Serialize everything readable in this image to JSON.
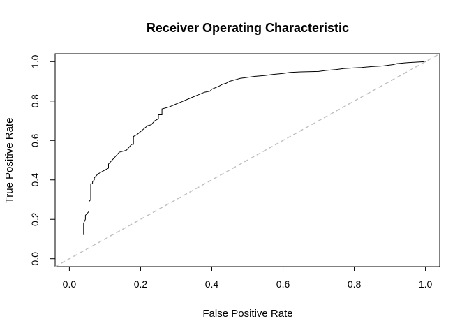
{
  "chart_data": {
    "type": "line",
    "title": "Receiver Operating Characteristic",
    "xlabel": "False Positive Rate",
    "ylabel": "True Positive Rate",
    "xlim": [
      -0.04,
      1.04
    ],
    "ylim": [
      -0.04,
      1.04
    ],
    "x_ticks": [
      0.0,
      0.2,
      0.4,
      0.6,
      0.8,
      1.0
    ],
    "x_tick_labels": [
      "0.0",
      "0.2",
      "0.4",
      "0.6",
      "0.8",
      "1.0"
    ],
    "y_ticks": [
      0.0,
      0.2,
      0.4,
      0.6,
      0.8,
      1.0
    ],
    "y_tick_labels": [
      "0.0",
      "0.2",
      "0.4",
      "0.6",
      "0.8",
      "1.0"
    ],
    "grid": false,
    "series": [
      {
        "style": "solid",
        "color": "#000000",
        "x": [
          0.04,
          0.04,
          0.045,
          0.045,
          0.05,
          0.055,
          0.055,
          0.06,
          0.06,
          0.065,
          0.065,
          0.07,
          0.07,
          0.075,
          0.08,
          0.09,
          0.1,
          0.11,
          0.11,
          0.12,
          0.13,
          0.14,
          0.15,
          0.16,
          0.17,
          0.175,
          0.18,
          0.18,
          0.19,
          0.2,
          0.21,
          0.22,
          0.23,
          0.235,
          0.24,
          0.25,
          0.25,
          0.26,
          0.26,
          0.28,
          0.3,
          0.32,
          0.34,
          0.36,
          0.38,
          0.395,
          0.4,
          0.42,
          0.43,
          0.44,
          0.45,
          0.47,
          0.48,
          0.5,
          0.52,
          0.55,
          0.57,
          0.6,
          0.62,
          0.65,
          0.7,
          0.72,
          0.75,
          0.77,
          0.8,
          0.82,
          0.85,
          0.88,
          0.91,
          0.92,
          0.95,
          0.98,
          1.0
        ],
        "y": [
          0.12,
          0.18,
          0.2,
          0.22,
          0.23,
          0.24,
          0.29,
          0.3,
          0.38,
          0.38,
          0.39,
          0.4,
          0.41,
          0.42,
          0.43,
          0.44,
          0.45,
          0.46,
          0.48,
          0.5,
          0.52,
          0.54,
          0.545,
          0.55,
          0.57,
          0.58,
          0.58,
          0.62,
          0.63,
          0.645,
          0.66,
          0.675,
          0.68,
          0.69,
          0.7,
          0.71,
          0.73,
          0.73,
          0.76,
          0.77,
          0.785,
          0.8,
          0.815,
          0.83,
          0.845,
          0.85,
          0.86,
          0.875,
          0.885,
          0.89,
          0.9,
          0.91,
          0.915,
          0.92,
          0.925,
          0.93,
          0.935,
          0.94,
          0.945,
          0.948,
          0.95,
          0.955,
          0.96,
          0.965,
          0.968,
          0.97,
          0.975,
          0.978,
          0.985,
          0.99,
          0.995,
          0.998,
          1.0
        ]
      },
      {
        "style": "dashed",
        "color": "#bebebe",
        "x": [
          -0.04,
          1.04
        ],
        "y": [
          -0.04,
          1.04
        ]
      }
    ]
  }
}
